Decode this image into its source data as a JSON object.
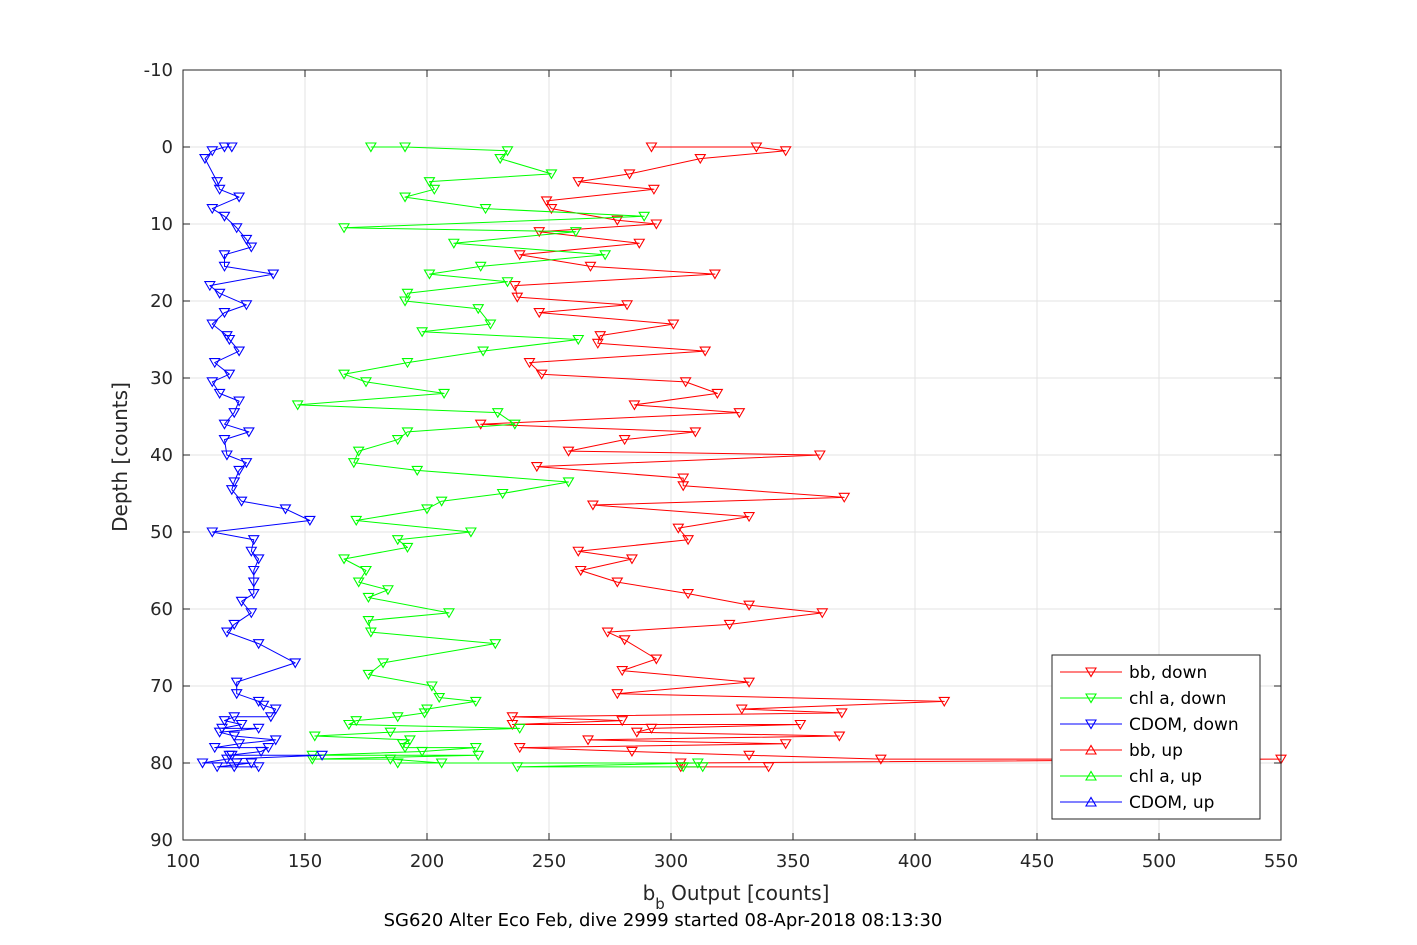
{
  "chart_data": {
    "type": "line",
    "title": "",
    "caption": "SG620 Alter Eco Feb, dive 2999 started 08-Apr-2018 08:13:30",
    "xlabel_main": "b",
    "xlabel_sub": "b",
    "xlabel_rest": " Output [counts]",
    "ylabel": "Depth [counts]",
    "xlim": [
      100,
      550
    ],
    "ylim": [
      -10,
      90
    ],
    "y_reversed": true,
    "grid": true,
    "legend_position": "bottom-right",
    "x_ticks": [
      100,
      150,
      200,
      250,
      300,
      350,
      400,
      450,
      500,
      550
    ],
    "y_ticks": [
      -10,
      0,
      10,
      20,
      30,
      40,
      50,
      60,
      70,
      80,
      90
    ],
    "series": [
      {
        "name": "bb, down",
        "color": "#ff0000",
        "marker": "triangle-down",
        "points": [
          [
            292,
            0
          ],
          [
            335,
            0
          ],
          [
            347,
            0.5
          ],
          [
            312,
            1.5
          ],
          [
            283,
            3.5
          ],
          [
            262,
            4.5
          ],
          [
            293,
            5.5
          ],
          [
            249,
            7
          ],
          [
            251,
            8
          ],
          [
            278,
            9.5
          ],
          [
            294,
            10
          ],
          [
            246,
            11
          ],
          [
            287,
            12.5
          ],
          [
            238,
            14
          ],
          [
            267,
            15.5
          ],
          [
            318,
            16.5
          ],
          [
            236,
            18
          ],
          [
            237,
            19.5
          ],
          [
            282,
            20.5
          ],
          [
            246,
            21.5
          ],
          [
            301,
            23
          ],
          [
            271,
            24.5
          ],
          [
            270,
            25.5
          ],
          [
            314,
            26.5
          ],
          [
            242,
            28
          ],
          [
            247,
            29.5
          ],
          [
            306,
            30.5
          ],
          [
            319,
            32
          ],
          [
            285,
            33.5
          ],
          [
            328,
            34.5
          ],
          [
            222,
            36
          ],
          [
            310,
            37
          ],
          [
            281,
            38
          ],
          [
            258,
            39.5
          ],
          [
            361,
            40
          ],
          [
            245,
            41.5
          ],
          [
            305,
            43
          ],
          [
            305,
            44
          ],
          [
            371,
            45.5
          ],
          [
            268,
            46.5
          ],
          [
            332,
            48
          ],
          [
            303,
            49.5
          ],
          [
            307,
            51
          ],
          [
            262,
            52.5
          ],
          [
            284,
            53.5
          ],
          [
            263,
            55
          ],
          [
            278,
            56.5
          ],
          [
            307,
            58
          ],
          [
            332,
            59.5
          ],
          [
            362,
            60.5
          ],
          [
            324,
            62
          ],
          [
            274,
            63
          ],
          [
            281,
            64
          ],
          [
            294,
            66.5
          ],
          [
            280,
            68
          ],
          [
            332,
            69.5
          ],
          [
            278,
            71
          ],
          [
            412,
            72
          ],
          [
            329,
            73
          ],
          [
            370,
            73.5
          ],
          [
            235,
            74
          ],
          [
            280,
            74.5
          ],
          [
            235,
            75
          ],
          [
            353,
            75
          ],
          [
            292,
            75.5
          ],
          [
            286,
            76
          ],
          [
            369,
            76.5
          ],
          [
            266,
            77
          ],
          [
            347,
            77.5
          ],
          [
            238,
            78
          ],
          [
            284,
            78.5
          ],
          [
            332,
            79
          ],
          [
            386,
            79.5
          ],
          [
            550,
            79.5
          ],
          [
            304,
            80
          ],
          [
            304,
            80.5
          ],
          [
            340,
            80.5
          ]
        ]
      },
      {
        "name": "chl a, down",
        "color": "#00ff00",
        "marker": "triangle-down",
        "points": [
          [
            177,
            0
          ],
          [
            191,
            0
          ],
          [
            233,
            0.5
          ],
          [
            230,
            1.5
          ],
          [
            251,
            3.5
          ],
          [
            201,
            4.5
          ],
          [
            203,
            5.5
          ],
          [
            191,
            6.5
          ],
          [
            224,
            8
          ],
          [
            289,
            9
          ],
          [
            166,
            10.5
          ],
          [
            261,
            11
          ],
          [
            211,
            12.5
          ],
          [
            273,
            14
          ],
          [
            222,
            15.5
          ],
          [
            201,
            16.5
          ],
          [
            233,
            17.5
          ],
          [
            192,
            19
          ],
          [
            191,
            20
          ],
          [
            221,
            21
          ],
          [
            226,
            23
          ],
          [
            198,
            24
          ],
          [
            262,
            25
          ],
          [
            223,
            26.5
          ],
          [
            192,
            28
          ],
          [
            166,
            29.5
          ],
          [
            175,
            30.5
          ],
          [
            207,
            32
          ],
          [
            147,
            33.5
          ],
          [
            229,
            34.5
          ],
          [
            236,
            36
          ],
          [
            192,
            37
          ],
          [
            188,
            38
          ],
          [
            172,
            39.5
          ],
          [
            170,
            41
          ],
          [
            196,
            42
          ],
          [
            258,
            43.5
          ],
          [
            231,
            45
          ],
          [
            206,
            46
          ],
          [
            200,
            47
          ],
          [
            171,
            48.5
          ],
          [
            218,
            50
          ],
          [
            188,
            51
          ],
          [
            192,
            52
          ],
          [
            166,
            53.5
          ],
          [
            175,
            55
          ],
          [
            172,
            56.5
          ],
          [
            184,
            57.5
          ],
          [
            176,
            58.5
          ],
          [
            209,
            60.5
          ],
          [
            176,
            61.5
          ],
          [
            177,
            63
          ],
          [
            228,
            64.5
          ],
          [
            182,
            67
          ],
          [
            176,
            68.5
          ],
          [
            202,
            70
          ],
          [
            205,
            71.5
          ],
          [
            220,
            72
          ],
          [
            200,
            73
          ],
          [
            199,
            73.5
          ],
          [
            188,
            74
          ],
          [
            171,
            74.5
          ],
          [
            168,
            75
          ],
          [
            238,
            75.5
          ],
          [
            185,
            76
          ],
          [
            154,
            76.5
          ],
          [
            193,
            77
          ],
          [
            190,
            77.5
          ],
          [
            191,
            78
          ],
          [
            220,
            78
          ],
          [
            198,
            78.5
          ],
          [
            153,
            79
          ],
          [
            221,
            79
          ],
          [
            153,
            79.5
          ],
          [
            185,
            79.5
          ],
          [
            206,
            80
          ],
          [
            188,
            80
          ],
          [
            311,
            80
          ],
          [
            237,
            80.5
          ],
          [
            305,
            80.5
          ],
          [
            313,
            80.5
          ]
        ]
      },
      {
        "name": "CDOM, down",
        "color": "#0000ff",
        "marker": "triangle-down",
        "points": [
          [
            120,
            0
          ],
          [
            117,
            0
          ],
          [
            112,
            0.5
          ],
          [
            109,
            1.5
          ],
          [
            114,
            4.5
          ],
          [
            115,
            5.5
          ],
          [
            123,
            6.5
          ],
          [
            112,
            8
          ],
          [
            117,
            9
          ],
          [
            122,
            10.5
          ],
          [
            126,
            12
          ],
          [
            128,
            13
          ],
          [
            117,
            14
          ],
          [
            117,
            15.5
          ],
          [
            137,
            16.5
          ],
          [
            111,
            18
          ],
          [
            115,
            19
          ],
          [
            126,
            20.5
          ],
          [
            117,
            21.5
          ],
          [
            112,
            23
          ],
          [
            118,
            24.5
          ],
          [
            119,
            25
          ],
          [
            123,
            26.5
          ],
          [
            113,
            28
          ],
          [
            119,
            29.5
          ],
          [
            112,
            30.5
          ],
          [
            115,
            32
          ],
          [
            123,
            33
          ],
          [
            121,
            34.5
          ],
          [
            117,
            36
          ],
          [
            127,
            37
          ],
          [
            117,
            38
          ],
          [
            118,
            40
          ],
          [
            126,
            41
          ],
          [
            123,
            42
          ],
          [
            121,
            43.5
          ],
          [
            120,
            44.5
          ],
          [
            124,
            46
          ],
          [
            142,
            47
          ],
          [
            152,
            48.5
          ],
          [
            112,
            50
          ],
          [
            129,
            51
          ],
          [
            128,
            52.5
          ],
          [
            131,
            53.5
          ],
          [
            129,
            55
          ],
          [
            129,
            56.5
          ],
          [
            129,
            58
          ],
          [
            124,
            59
          ],
          [
            128,
            60.5
          ],
          [
            121,
            62
          ],
          [
            118,
            63
          ],
          [
            131,
            64.5
          ],
          [
            146,
            67
          ],
          [
            122,
            69.5
          ],
          [
            122,
            71
          ],
          [
            131,
            72
          ],
          [
            133,
            72.5
          ],
          [
            138,
            73
          ],
          [
            136,
            74
          ],
          [
            121,
            74
          ],
          [
            117,
            74.5
          ],
          [
            124,
            75
          ],
          [
            116,
            75.5
          ],
          [
            131,
            75.5
          ],
          [
            115,
            76
          ],
          [
            121,
            76.5
          ],
          [
            138,
            77
          ],
          [
            123,
            77.5
          ],
          [
            113,
            78
          ],
          [
            135,
            78
          ],
          [
            132,
            78.5
          ],
          [
            119,
            79
          ],
          [
            120,
            79
          ],
          [
            157,
            79
          ],
          [
            118,
            79.5
          ],
          [
            108,
            80
          ],
          [
            122,
            80
          ],
          [
            128,
            80
          ],
          [
            114,
            80.5
          ],
          [
            121,
            80.5
          ],
          [
            131,
            80.5
          ]
        ]
      },
      {
        "name": "bb, up",
        "color": "#ff0000",
        "marker": "triangle-up",
        "points": [],
        "points_note": ""
      },
      {
        "name": "chl a, up",
        "color": "#00ff00",
        "marker": "triangle-up",
        "points": []
      },
      {
        "name": "CDOM, up",
        "color": "#0000ff",
        "marker": "triangle-up",
        "points": []
      }
    ]
  }
}
